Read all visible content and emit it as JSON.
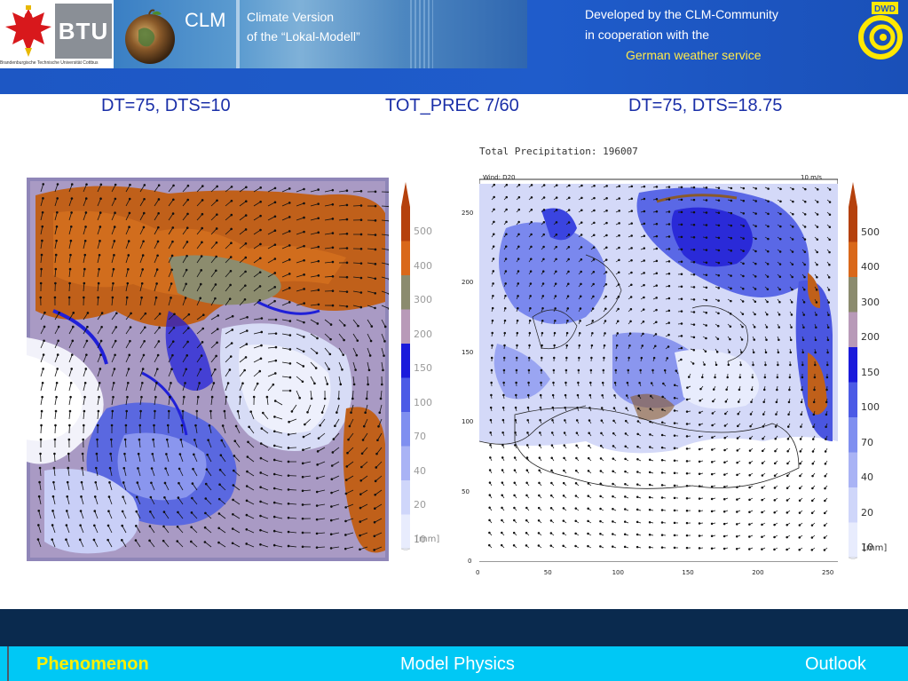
{
  "header": {
    "btu_logo_text": "BTU",
    "btu_caption": "Brandenburgische Technische Universität Cottbus",
    "clm_text": "CLM",
    "climate_line1": "Climate Version",
    "climate_line2": "of the “Lokal-Modell”",
    "dev_line1": "Developed by the CLM-Community",
    "dev_line2": "in cooperation with the",
    "dev_line3": "German weather service",
    "dwd_logo_text": "DWD"
  },
  "subtitles": {
    "left": "DT=75, DTS=10",
    "middle": "TOT_PREC 7/60",
    "right": "DT=75, DTS=18.75"
  },
  "colorbar": {
    "levels": [
      "500",
      "400",
      "300",
      "200",
      "150",
      "100",
      "70",
      "40",
      "20",
      "10"
    ],
    "unit": "[mm]",
    "colors": [
      "#b5410d",
      "#d9681a",
      "#8b8b6e",
      "#b89ab8",
      "#1a1adb",
      "#4b5ae6",
      "#7f8ff0",
      "#a9b3f5",
      "#cfd6fa",
      "#e8ecfd"
    ]
  },
  "right_plot": {
    "title": "Total Precipitation: 196007",
    "wind_label": "Wind:  D20",
    "wind_ref": "10 m/s",
    "y_ticks": [
      "250",
      "200",
      "150",
      "100",
      "50",
      "0"
    ],
    "x_ticks": [
      "0",
      "50",
      "100",
      "150",
      "200",
      "250"
    ]
  },
  "nav": {
    "phenomenon": "Phenomenon",
    "model_physics": "Model Physics",
    "outlook": "Outlook"
  },
  "theme": {
    "header_blue": "#1d57c4",
    "subtitle_blue": "#1a2fa8",
    "nav_cyan": "#00c8f5",
    "nav_active_yellow": "#ffef00",
    "dark_band": "#0a2a4e"
  }
}
